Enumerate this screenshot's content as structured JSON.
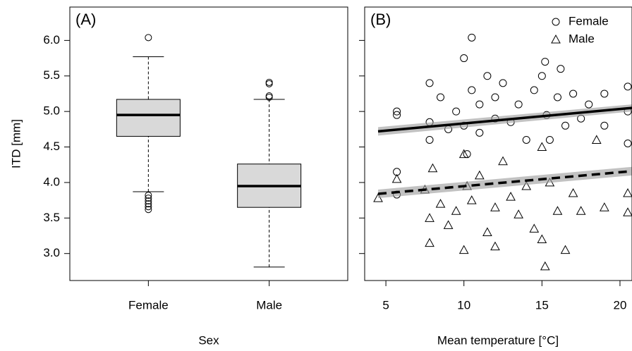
{
  "chart_data": [
    {
      "type": "box",
      "panel_label": "(A)",
      "y_label": "ITD [mm]",
      "x_label": "Sex",
      "categories": [
        "Female",
        "Male"
      ],
      "boxes": [
        {
          "whislo": 3.87,
          "q1": 4.65,
          "med": 4.95,
          "q3": 5.17,
          "whishi": 5.77,
          "fliers": [
            6.04,
            3.82,
            3.78,
            3.74,
            3.7,
            3.66,
            3.62
          ]
        },
        {
          "whislo": 2.81,
          "q1": 3.65,
          "med": 3.95,
          "q3": 4.26,
          "whishi": 5.17,
          "fliers": [
            5.2,
            5.22,
            5.39,
            5.41
          ]
        }
      ],
      "color": "#d9d9d9",
      "ylim": [
        2.62,
        6.47
      ],
      "yticks": [
        {
          "value": 3,
          "label": "3.0"
        },
        {
          "value": 3.5,
          "label": "3.5"
        },
        {
          "value": 4,
          "label": "4.0"
        },
        {
          "value": 4.5,
          "label": "4.5"
        },
        {
          "value": 5,
          "label": "5.0"
        },
        {
          "value": 5.5,
          "label": "5.5"
        },
        {
          "value": 6,
          "label": "6.0"
        }
      ]
    },
    {
      "type": "scatter",
      "panel_label": "(B)",
      "x_label": "Mean temperature [°C]",
      "xlim": [
        3.64,
        20.77
      ],
      "xticks": [
        5,
        10,
        15,
        20
      ],
      "ylim": [
        2.62,
        6.47
      ],
      "yticks": [
        3,
        3.5,
        4,
        4.5,
        5,
        5.5,
        6
      ],
      "legend": "top-right",
      "series": [
        {
          "name": "Female",
          "marker": "circle",
          "x": [
            5.7,
            5.7,
            5.7,
            5.7,
            7.8,
            7.8,
            7.8,
            8.5,
            9,
            9.5,
            10,
            10,
            10.2,
            10.5,
            10.5,
            11,
            11,
            11.5,
            12,
            12,
            12.5,
            13,
            13.5,
            14,
            14.5,
            15,
            15.2,
            15.3,
            15.5,
            16,
            16.2,
            16.5,
            17,
            17.5,
            18,
            19,
            19,
            20.5,
            20.5,
            20.5
          ],
          "y": [
            4.95,
            5.0,
            4.15,
            3.83,
            5.4,
            4.85,
            4.6,
            5.2,
            4.75,
            5.0,
            5.75,
            4.8,
            4.4,
            6.04,
            5.3,
            5.1,
            4.7,
            5.5,
            5.2,
            4.9,
            5.4,
            4.85,
            5.1,
            4.6,
            5.3,
            5.5,
            5.7,
            4.95,
            4.6,
            5.2,
            5.6,
            4.8,
            5.25,
            4.9,
            5.1,
            5.25,
            4.8,
            5.35,
            5.0,
            4.55
          ]
        },
        {
          "name": "Male",
          "marker": "triangle",
          "x": [
            4.5,
            5.7,
            7.5,
            7.8,
            7.8,
            8,
            8.5,
            9,
            9.5,
            10,
            10,
            10.2,
            10.5,
            11,
            11.5,
            12,
            12,
            12.5,
            13,
            13.5,
            14,
            14.5,
            15,
            15,
            15.2,
            15.5,
            16,
            16.5,
            17,
            17.5,
            18.5,
            19,
            20.5,
            20.5
          ],
          "y": [
            3.78,
            4.05,
            3.9,
            3.5,
            3.15,
            4.2,
            3.7,
            3.4,
            3.6,
            3.05,
            4.4,
            3.95,
            3.75,
            4.1,
            3.3,
            3.65,
            3.1,
            4.3,
            3.8,
            3.55,
            3.95,
            3.35,
            4.5,
            3.2,
            2.82,
            4.0,
            3.6,
            3.05,
            3.85,
            3.6,
            4.6,
            3.65,
            3.85,
            3.58
          ]
        }
      ],
      "fits": [
        {
          "dash": false,
          "x": [
            4.5,
            20.77
          ],
          "y": [
            4.72,
            5.05
          ],
          "lower": [
            4.66,
            5.0
          ],
          "upper": [
            4.78,
            5.1
          ]
        },
        {
          "dash": true,
          "x": [
            4.5,
            20.77
          ],
          "y": [
            3.84,
            4.16
          ],
          "lower": [
            3.78,
            4.1
          ],
          "upper": [
            3.9,
            4.22
          ]
        }
      ]
    }
  ]
}
